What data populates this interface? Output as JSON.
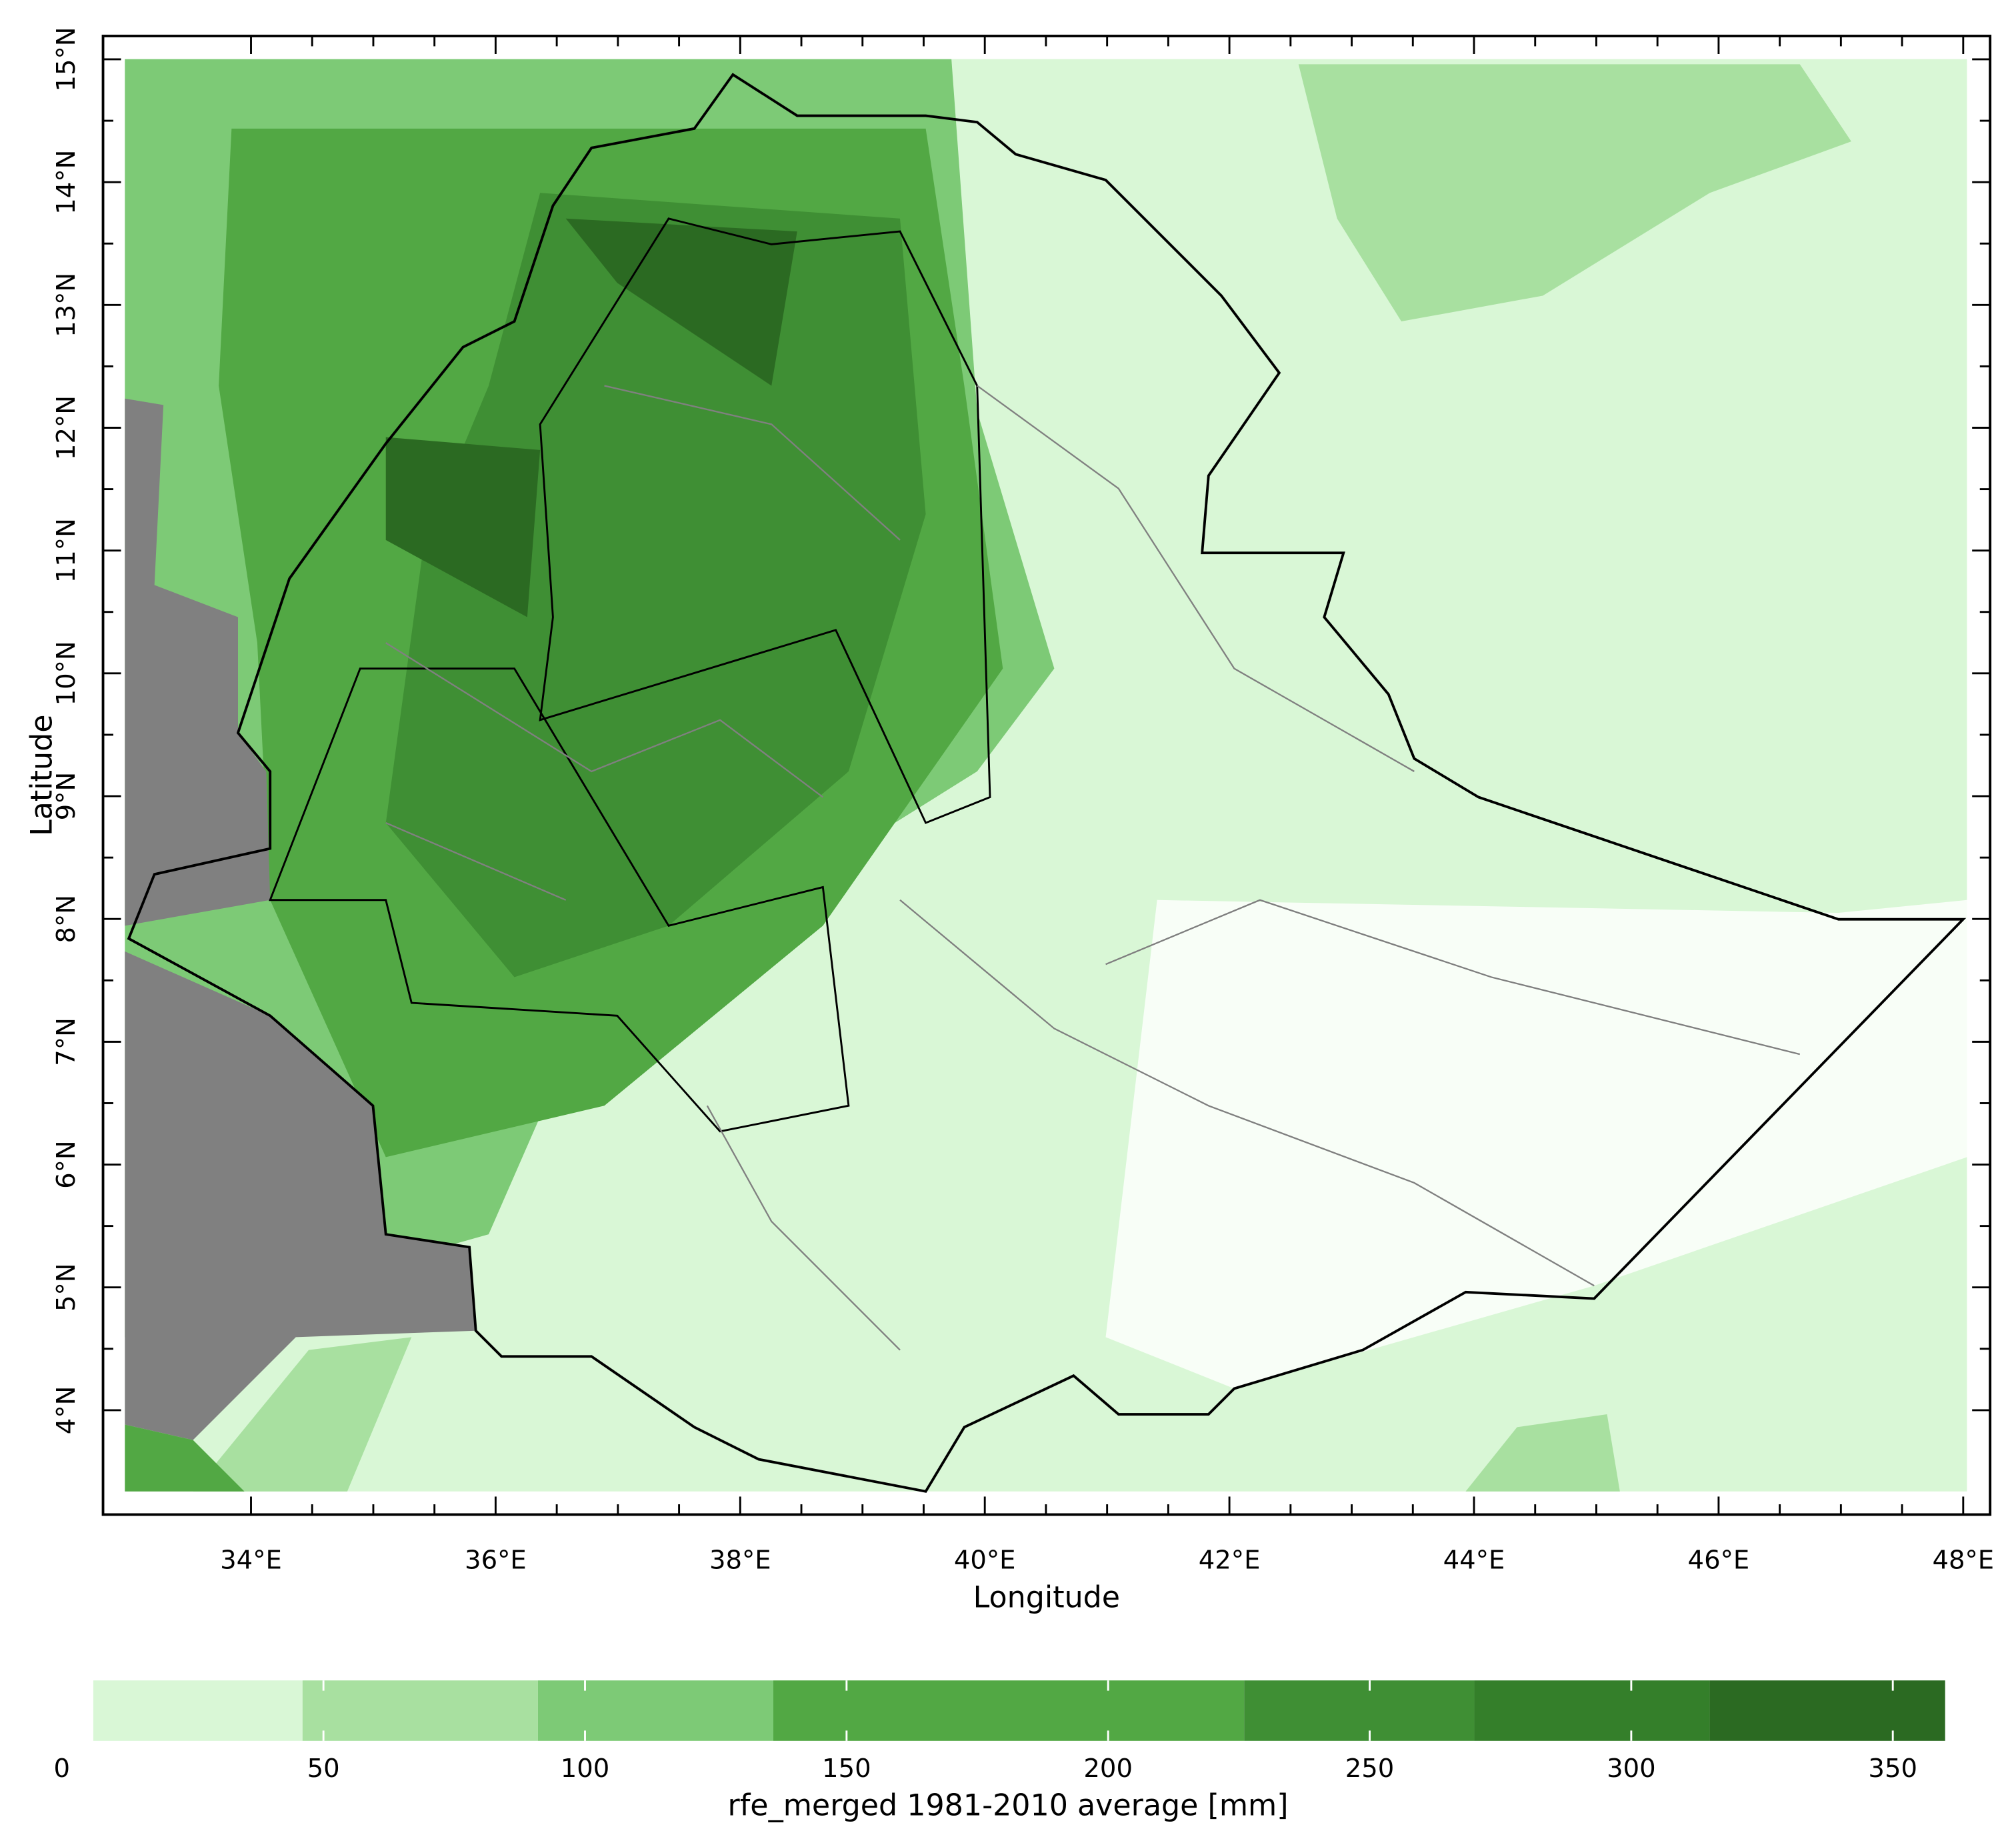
{
  "map": {
    "xlabel": "Longitude",
    "ylabel": "Latitude",
    "xlim": [
      32.79,
      48.22
    ],
    "ylim": [
      3.15,
      15.19
    ],
    "xticks": [
      {
        "value": 34,
        "label": "34°E"
      },
      {
        "value": 36,
        "label": "36°E"
      },
      {
        "value": 38,
        "label": "38°E"
      },
      {
        "value": 40,
        "label": "40°E"
      },
      {
        "value": 42,
        "label": "42°E"
      },
      {
        "value": 44,
        "label": "44°E"
      },
      {
        "value": 46,
        "label": "46°E"
      },
      {
        "value": 48,
        "label": "48°E"
      }
    ],
    "yticks": [
      {
        "value": 4,
        "label": "4°N"
      },
      {
        "value": 5,
        "label": "5°N"
      },
      {
        "value": 6,
        "label": "6°N"
      },
      {
        "value": 7,
        "label": "7°N"
      },
      {
        "value": 8,
        "label": "8°N"
      },
      {
        "value": 9,
        "label": "9°N"
      },
      {
        "value": 10,
        "label": "10°N"
      },
      {
        "value": 11,
        "label": "11°N"
      },
      {
        "value": 12,
        "label": "12°N"
      },
      {
        "value": 13,
        "label": "13°N"
      },
      {
        "value": 14,
        "label": "14°N"
      },
      {
        "value": 15,
        "label": "15°N"
      }
    ]
  },
  "colorbar": {
    "title": "rfe_merged 1981-2010 average [mm]",
    "lim": [
      0,
      360
    ],
    "ticks": [
      0,
      50,
      100,
      150,
      200,
      250,
      300,
      350
    ],
    "bins": [
      6,
      46,
      91,
      136,
      226,
      270,
      315,
      360
    ],
    "colors": [
      "#d9f7d6",
      "#a8e0a0",
      "#7dca76",
      "#52a844",
      "#3f8f34",
      "#347f2a",
      "#2b6a22"
    ]
  }
}
